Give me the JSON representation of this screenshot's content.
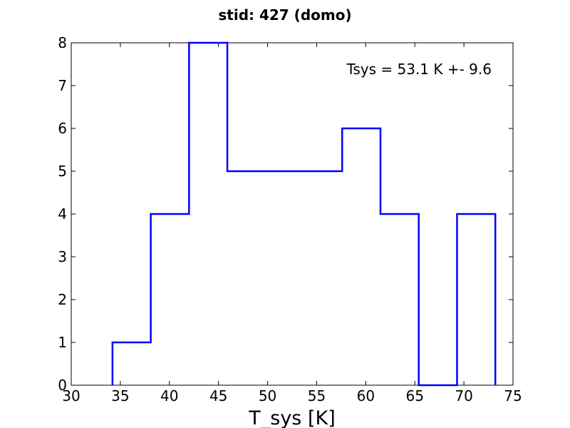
{
  "chart_data": {
    "type": "histogram",
    "title": "stid: 427 (domo)",
    "xlabel": "T_sys [K]",
    "ylabel": "",
    "xlim": [
      30,
      75
    ],
    "ylim": [
      0,
      8
    ],
    "xticks": [
      30,
      35,
      40,
      45,
      50,
      55,
      60,
      65,
      70,
      75
    ],
    "yticks": [
      0,
      1,
      2,
      3,
      4,
      5,
      6,
      7,
      8
    ],
    "grid": false,
    "histtype": "step",
    "line_color": "#0000ff",
    "bin_edges": [
      34.2,
      38.1,
      42.0,
      45.9,
      49.8,
      53.7,
      57.6,
      61.5,
      65.4,
      69.3,
      73.2
    ],
    "counts": [
      1,
      4,
      8,
      5,
      5,
      5,
      6,
      4,
      0,
      4
    ],
    "annotation": "Tsys = 53.1 K +- 9.6"
  }
}
